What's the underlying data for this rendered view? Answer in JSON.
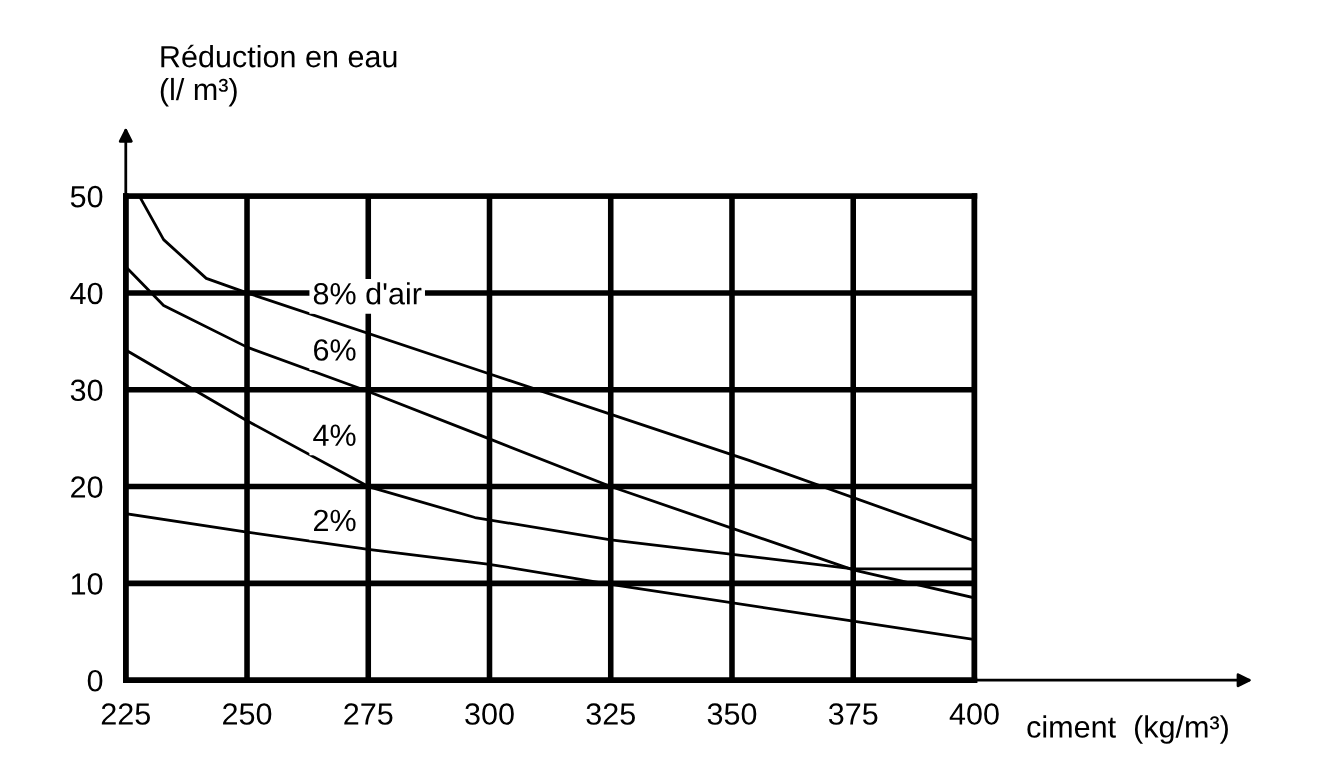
{
  "chart_data": {
    "type": "line",
    "ylabel": "Réduction en eau\n(l/ m³)",
    "xlabel": "ciment  (kg/m³)",
    "series": [
      {
        "name": "8% d'air",
        "color": "#000000",
        "x": [
          227.8,
          232.8,
          241.6,
          250,
          299.6,
          353.5,
          400
        ],
        "values": [
          50,
          45.5,
          41.5,
          40,
          31.7,
          22.7,
          14.4
        ]
      },
      {
        "name": "6%",
        "color": "#000000",
        "x": [
          225,
          232.8,
          250,
          274.6,
          299.6,
          325,
          375,
          400
        ],
        "values": [
          42.7,
          38.7,
          34.4,
          29.9,
          25.0,
          20,
          11.4,
          8.5
        ]
      },
      {
        "name": "4%",
        "color": "#000000",
        "x": [
          225,
          250,
          275,
          297,
          325,
          375,
          400
        ],
        "values": [
          34.1,
          26.8,
          20,
          16.8,
          14.5,
          11.5,
          11.5
        ]
      },
      {
        "name": "2%",
        "color": "#000000",
        "x": [
          225,
          250,
          275,
          299.6,
          325,
          375,
          400
        ],
        "values": [
          17.2,
          15.3,
          13.5,
          12.0,
          9.9,
          6.1,
          4.2
        ]
      }
    ],
    "xlim": [
      225,
      400
    ],
    "ylim": [
      0,
      50
    ],
    "xticks": [
      225,
      250,
      275,
      300,
      325,
      350,
      375,
      400
    ],
    "yticks": [
      0,
      10,
      20,
      30,
      40,
      50
    ],
    "grid": true,
    "line_style": "solid",
    "marker": "none"
  }
}
